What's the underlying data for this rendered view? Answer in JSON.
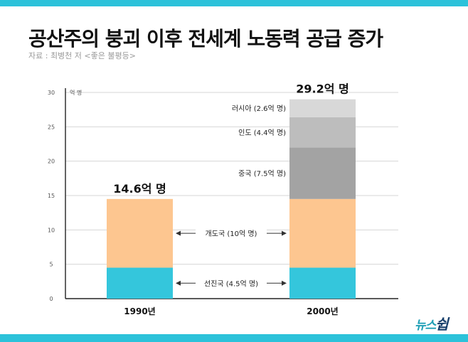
{
  "header": {
    "title": "공산주의 붕괴 이후 전세계 노동력 공급 증가",
    "source": "자료 : 최병천 저 <좋은 불평등>"
  },
  "colors": {
    "band": "#2cc2da",
    "advanced": "#34c6dc",
    "developing": "#fdc690",
    "china": "#a3a3a3",
    "india": "#bdbdbd",
    "russia": "#d8d8d8"
  },
  "logo": {
    "text_main": "뉴스",
    "text_accent": "쉽"
  },
  "chart_data": {
    "type": "bar",
    "stacked": true,
    "categories": [
      "1990년",
      "2000년"
    ],
    "series": [
      {
        "name": "선진국 (4.5억 명)",
        "values": [
          4.5,
          4.5
        ],
        "color": "#34c6dc"
      },
      {
        "name": "개도국 (10억 명)",
        "values": [
          10,
          10
        ],
        "color": "#fdc690"
      },
      {
        "name": "중국 (7.5억 명)",
        "values": [
          0,
          7.5
        ],
        "color": "#a3a3a3"
      },
      {
        "name": "인도 (4.4억 명)",
        "values": [
          0,
          4.4
        ],
        "color": "#bdbdbd"
      },
      {
        "name": "러시아 (2.6억 명)",
        "values": [
          0,
          2.6
        ],
        "color": "#d8d8d8"
      }
    ],
    "totals": [
      "14.6억 명",
      "29.2억 명"
    ],
    "ylabel": "억 명",
    "yticks": [
      0,
      5,
      10,
      15,
      20,
      25,
      30
    ],
    "ylim": [
      0,
      30
    ],
    "grid": true,
    "legend": "inline"
  }
}
